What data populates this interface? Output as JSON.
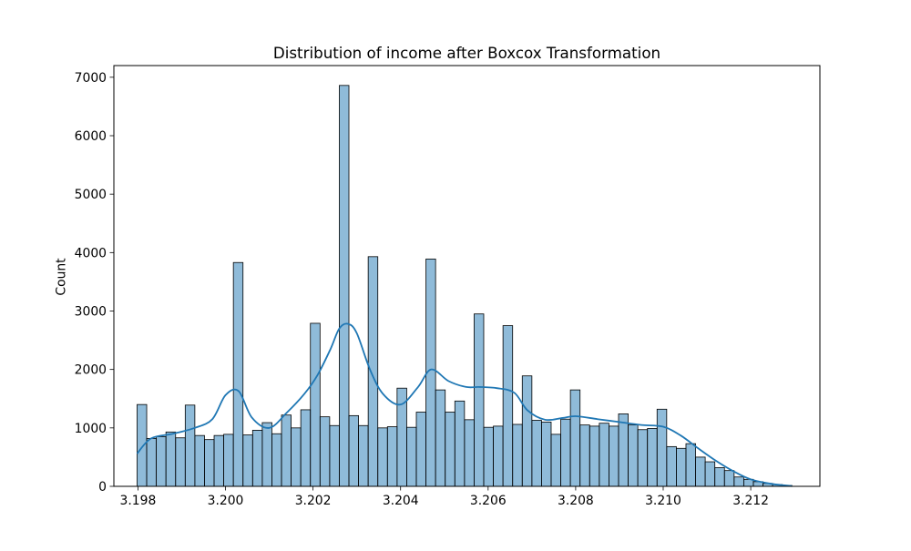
{
  "chart_data": {
    "type": "histogram",
    "title": "Distribution of income after Boxcox Transformation",
    "xlabel": "",
    "ylabel": "Count",
    "xlim": [
      3.19745,
      3.21358
    ],
    "ylim": [
      0,
      7200
    ],
    "xticks": [
      {
        "value": 3.198,
        "label": "3.198"
      },
      {
        "value": 3.2,
        "label": "3.200"
      },
      {
        "value": 3.202,
        "label": "3.202"
      },
      {
        "value": 3.204,
        "label": "3.204"
      },
      {
        "value": 3.206,
        "label": "3.206"
      },
      {
        "value": 3.208,
        "label": "3.208"
      },
      {
        "value": 3.21,
        "label": "3.210"
      },
      {
        "value": 3.212,
        "label": "3.212"
      }
    ],
    "yticks": [
      {
        "value": 0,
        "label": "0"
      },
      {
        "value": 1000,
        "label": "1000"
      },
      {
        "value": 2000,
        "label": "2000"
      },
      {
        "value": 3000,
        "label": "3000"
      },
      {
        "value": 4000,
        "label": "4000"
      },
      {
        "value": 5000,
        "label": "5000"
      },
      {
        "value": 6000,
        "label": "6000"
      },
      {
        "value": 7000,
        "label": "7000"
      }
    ],
    "bins": {
      "start": 3.19798,
      "end": 3.21294,
      "counts": [
        1400,
        820,
        850,
        930,
        830,
        1390,
        870,
        800,
        870,
        890,
        3830,
        880,
        960,
        1090,
        900,
        1220,
        1000,
        1310,
        2790,
        1190,
        1040,
        6860,
        1210,
        1040,
        3930,
        1000,
        1020,
        1680,
        1010,
        1270,
        3890,
        1650,
        1270,
        1460,
        1140,
        2950,
        1010,
        1030,
        2750,
        1060,
        1890,
        1130,
        1100,
        890,
        1150,
        1650,
        1050,
        1030,
        1080,
        1030,
        1240,
        1050,
        970,
        990,
        1320,
        680,
        650,
        730,
        500,
        420,
        320,
        270,
        160,
        120,
        80,
        50,
        30,
        15
      ]
    },
    "kde": {
      "x": [
        3.19798,
        3.1983,
        3.1988,
        3.1993,
        3.1997,
        3.2,
        3.2003,
        3.2006,
        3.201,
        3.2014,
        3.2018,
        3.2021,
        3.2024,
        3.2026,
        3.2028,
        3.203,
        3.2033,
        3.2036,
        3.204,
        3.2044,
        3.2047,
        3.2051,
        3.2055,
        3.2058,
        3.2062,
        3.2066,
        3.2069,
        3.2073,
        3.2077,
        3.208,
        3.2085,
        3.209,
        3.2095,
        3.21,
        3.2104,
        3.2108,
        3.2112,
        3.2116,
        3.212,
        3.2125,
        3.21294
      ],
      "y": [
        560,
        820,
        900,
        1000,
        1150,
        1560,
        1630,
        1180,
        1000,
        1260,
        1580,
        1900,
        2350,
        2700,
        2780,
        2620,
        2000,
        1580,
        1400,
        1700,
        2000,
        1800,
        1700,
        1700,
        1680,
        1600,
        1300,
        1140,
        1170,
        1200,
        1150,
        1100,
        1050,
        1020,
        870,
        650,
        440,
        260,
        120,
        40,
        5
      ]
    },
    "bar_color": "#1f77b4",
    "bar_opacity": 0.5,
    "kde_color": "#1f77b4",
    "grid": false,
    "legend": "none"
  }
}
